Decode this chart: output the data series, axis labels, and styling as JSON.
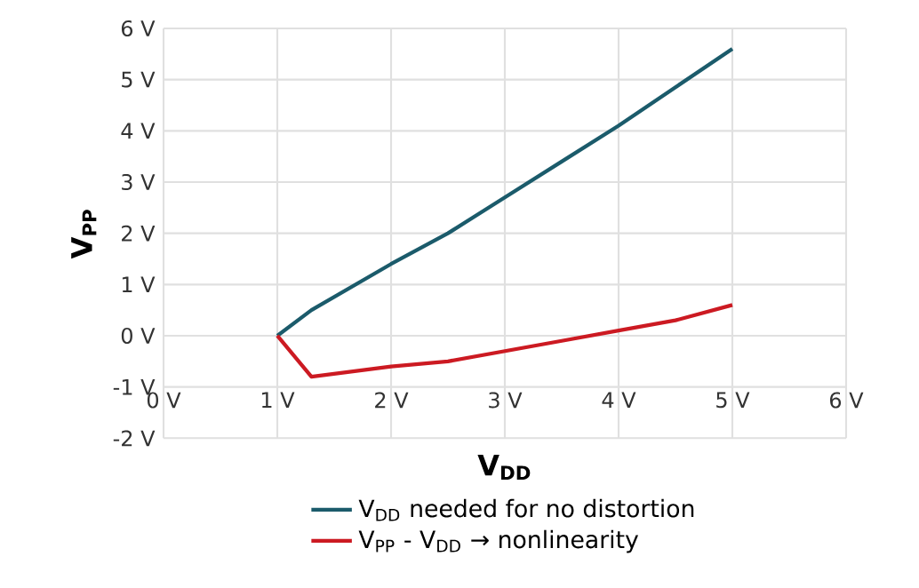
{
  "chart_data": {
    "type": "line",
    "xlabel": "V$_{DD}$",
    "ylabel": "V$_{PP}$",
    "xlim": [
      0,
      6
    ],
    "ylim": [
      -2,
      6
    ],
    "xticks": [
      {
        "value": 0,
        "label": "0 V"
      },
      {
        "value": 1,
        "label": "1 V"
      },
      {
        "value": 2,
        "label": "2 V"
      },
      {
        "value": 3,
        "label": "3 V"
      },
      {
        "value": 4,
        "label": "4 V"
      },
      {
        "value": 5,
        "label": "5 V"
      },
      {
        "value": 6,
        "label": "6 V"
      }
    ],
    "yticks": [
      {
        "value": -2,
        "label": "-2 V"
      },
      {
        "value": -1,
        "label": "-1 V"
      },
      {
        "value": 0,
        "label": "0 V"
      },
      {
        "value": 1,
        "label": "1 V"
      },
      {
        "value": 2,
        "label": "2 V"
      },
      {
        "value": 3,
        "label": "3 V"
      },
      {
        "value": 4,
        "label": "4 V"
      },
      {
        "value": 5,
        "label": "5 V"
      },
      {
        "value": 6,
        "label": "6 V"
      }
    ],
    "x": [
      1,
      1.3,
      2,
      2.5,
      3,
      3.5,
      4,
      4.5,
      5
    ],
    "series": [
      {
        "name": "V$_{DD}$ needed for no distortion",
        "color": "#1b5b6b",
        "values": [
          0,
          0.5,
          1.4,
          2.0,
          2.7,
          3.4,
          4.1,
          4.85,
          5.6
        ]
      },
      {
        "name": "V$_{PP}$ - V$_{DD}$ → nonlinearity",
        "color": "#cc1a22",
        "values": [
          0,
          -0.8,
          -0.6,
          -0.5,
          -0.3,
          -0.1,
          0.1,
          0.3,
          0.6
        ]
      }
    ],
    "grid": true,
    "legend": "bottom",
    "marker": "none",
    "line_style": "solid"
  }
}
